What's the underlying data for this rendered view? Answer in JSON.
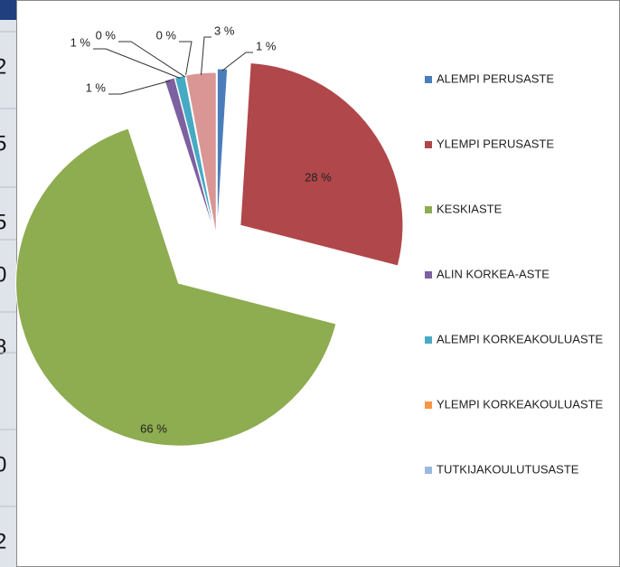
{
  "chart_data": {
    "type": "pie",
    "categories": [
      "ALEMPI PERUSASTE",
      "YLEMPI PERUSASTE",
      "KESKIASTE",
      "ALIN KORKEA-ASTE",
      "ALEMPI KORKEAKOULUASTE",
      "YLEMPI KORKEAKOULUASTE",
      "TUTKIJAKOULUTUSASTE",
      null
    ],
    "values": [
      1,
      28,
      66,
      1,
      1,
      0,
      0,
      3
    ],
    "value_labels": [
      "1 %",
      "28 %",
      "66 %",
      "1 %",
      "1 %",
      "0 %",
      "0 %",
      "3 %"
    ],
    "colors": [
      "#4a7ebb",
      "#b0474a",
      "#8eac50",
      "#7d60a0",
      "#46aac5",
      "#f79646",
      "#9cb8e0",
      "#d99694"
    ],
    "legend": "right"
  },
  "left_strip": [
    "2",
    "5",
    "5",
    "0",
    "8",
    ".",
    "0",
    "2"
  ]
}
